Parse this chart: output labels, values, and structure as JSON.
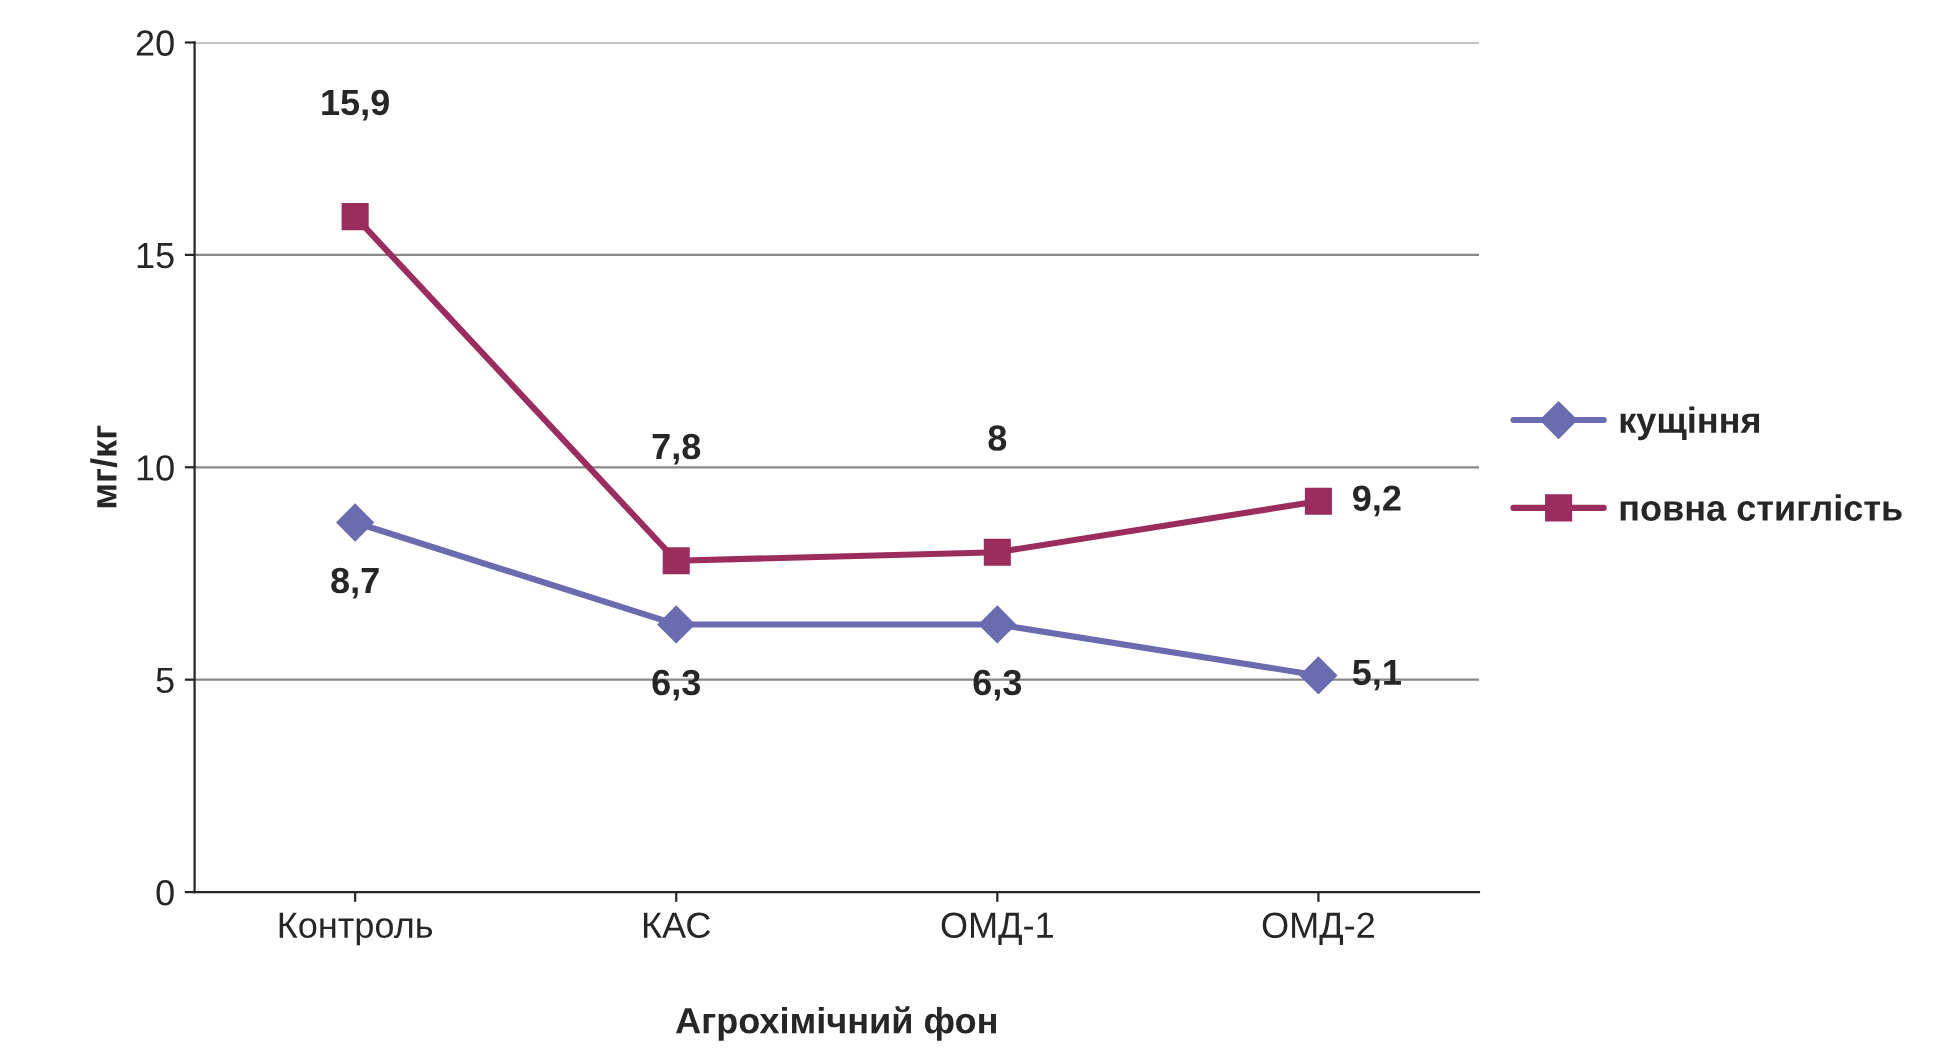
{
  "chart_data": {
    "type": "line",
    "xlabel": "Агрохімічний фон",
    "ylabel": "мг/кг",
    "categories": [
      "Контроль",
      "КАС",
      "ОМД-1",
      "ОМД-2"
    ],
    "series": [
      {
        "name": "кущіння",
        "color": "#6b6bb0",
        "marker": "diamond",
        "values": [
          8.7,
          6.3,
          6.3,
          5.1
        ],
        "value_labels": [
          "8,7",
          "6,3",
          "6,3",
          "5,1"
        ]
      },
      {
        "name": "повна стиглість",
        "color": "#9b2d5e",
        "marker": "square",
        "values": [
          15.9,
          7.8,
          8,
          9.2
        ],
        "value_labels": [
          "15,9",
          "7,8",
          "8",
          "9,2"
        ]
      }
    ],
    "ylim": [
      0,
      20
    ],
    "yticks": [
      0,
      5,
      10,
      15,
      20
    ],
    "grid": "y",
    "legend": "right",
    "line_style": "solid"
  }
}
